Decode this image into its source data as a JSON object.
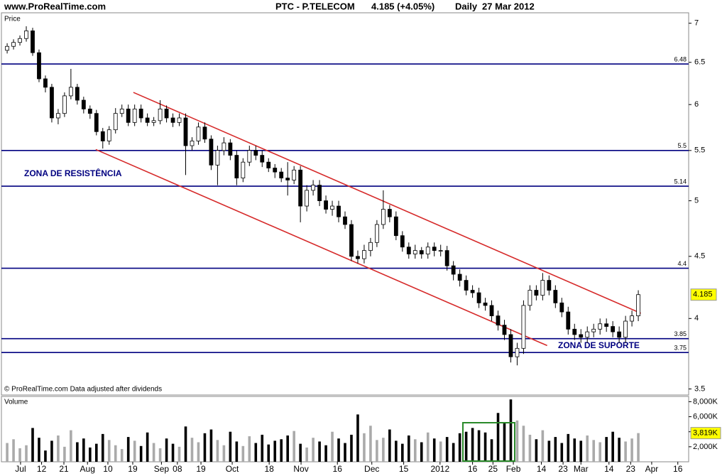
{
  "chart_data": [
    {
      "type": "candlestick",
      "site": "www.ProRealTime.com",
      "title": "PTC - P.TELECOM",
      "change_text": "4.185 (+4.05%)",
      "period": "Daily",
      "date": "27 Mar 2012",
      "ylabel": "Price",
      "footnote": "© ProRealTime.com Data adjusted after dividends",
      "log_scale": true,
      "up_color": "#ffffff",
      "down_color": "#000000",
      "level_color": "#000080",
      "trend_color": "#d62a2a",
      "last_label_color": "#ffff00",
      "ylim": [
        3.46,
        7.14
      ],
      "yticks": [
        7,
        6.5,
        6,
        5.5,
        5,
        4.5,
        4,
        3.5
      ],
      "xlim": [
        -0.9,
        106.9
      ],
      "xticks": [
        {
          "value": 2.1,
          "label": "Jul"
        },
        {
          "value": 5.4,
          "label": "12"
        },
        {
          "value": 8.9,
          "label": "21"
        },
        {
          "value": 12.6,
          "label": "Aug"
        },
        {
          "value": 15.8,
          "label": "10"
        },
        {
          "value": 19.7,
          "label": "19"
        },
        {
          "value": 24.2,
          "label": "Sep"
        },
        {
          "value": 26.7,
          "label": "08"
        },
        {
          "value": 30.4,
          "label": "19"
        },
        {
          "value": 35.3,
          "label": "Oct"
        },
        {
          "value": 41.1,
          "label": "18"
        },
        {
          "value": 46.1,
          "label": "Nov"
        },
        {
          "value": 51.8,
          "label": "16"
        },
        {
          "value": 57.2,
          "label": "Dec"
        },
        {
          "value": 62.2,
          "label": "15"
        },
        {
          "value": 67.9,
          "label": "2012"
        },
        {
          "value": 73,
          "label": "16"
        },
        {
          "value": 76.2,
          "label": "25"
        },
        {
          "value": 79.4,
          "label": "Feb"
        },
        {
          "value": 83.8,
          "label": "14"
        },
        {
          "value": 87.2,
          "label": "23"
        },
        {
          "value": 90,
          "label": "Mar"
        },
        {
          "value": 94.4,
          "label": "14"
        },
        {
          "value": 97.8,
          "label": "23"
        },
        {
          "value": 101.1,
          "label": "Apr"
        },
        {
          "value": 105.2,
          "label": "16"
        }
      ],
      "levels": [
        6.48,
        5.5,
        5.14,
        4.4,
        3.85,
        3.75
      ],
      "trendlines": [
        {
          "x": [
            19.8,
            99.4
          ],
          "y": [
            6.14,
            4.04
          ]
        },
        {
          "x": [
            13.9,
            84.7
          ],
          "y": [
            5.51,
            3.8
          ]
        }
      ],
      "annotations": [
        "ZONA DE RESISTÊNCIA",
        "ZONA DE SUPORTE"
      ],
      "open": [
        6.65,
        6.7,
        6.75,
        6.8,
        6.9,
        6.62,
        6.3,
        6.2,
        5.85,
        5.9,
        6.1,
        6.2,
        6.05,
        5.95,
        5.9,
        5.7,
        5.6,
        5.72,
        5.9,
        5.95,
        5.8,
        5.95,
        5.85,
        5.8,
        5.82,
        5.95,
        5.85,
        5.8,
        5.85,
        5.55,
        5.6,
        5.75,
        5.62,
        5.35,
        5.5,
        5.58,
        5.45,
        5.22,
        5.38,
        5.5,
        5.45,
        5.38,
        5.32,
        5.28,
        5.22,
        5.2,
        5.3,
        4.95,
        5.1,
        5.15,
        5.0,
        4.92,
        4.95,
        4.85,
        4.78,
        4.5,
        4.48,
        4.55,
        4.62,
        4.78,
        4.92,
        4.85,
        4.68,
        4.58,
        4.52,
        4.55,
        4.52,
        4.58,
        4.55,
        4.55,
        4.42,
        4.35,
        4.3,
        4.22,
        4.2,
        4.12,
        4.1,
        4.02,
        3.95,
        3.88,
        3.72,
        3.78,
        4.1,
        4.22,
        4.18,
        4.3,
        4.22,
        4.12,
        4.05,
        3.92,
        3.88,
        3.86,
        3.9,
        3.92,
        3.96,
        3.94,
        3.9,
        3.86,
        3.98,
        4.02
      ],
      "high": [
        6.74,
        6.79,
        6.84,
        6.96,
        6.94,
        6.66,
        6.34,
        6.24,
        5.95,
        6.14,
        6.42,
        6.24,
        6.09,
        5.99,
        5.94,
        5.74,
        5.76,
        5.96,
        6.0,
        6.0,
        6.0,
        6.0,
        5.9,
        5.86,
        6.05,
        5.99,
        5.9,
        5.9,
        5.9,
        5.64,
        5.8,
        5.8,
        5.66,
        5.55,
        5.64,
        5.62,
        5.5,
        5.42,
        5.55,
        5.55,
        5.5,
        5.42,
        5.36,
        5.32,
        5.38,
        5.34,
        5.34,
        5.15,
        5.2,
        5.2,
        5.05,
        5.0,
        5.0,
        4.9,
        4.82,
        4.55,
        4.6,
        4.66,
        4.82,
        5.1,
        4.96,
        4.9,
        4.72,
        4.62,
        4.6,
        4.58,
        4.62,
        4.62,
        4.6,
        4.59,
        4.46,
        4.39,
        4.34,
        4.26,
        4.24,
        4.16,
        4.14,
        4.06,
        3.99,
        3.92,
        3.82,
        4.14,
        4.26,
        4.26,
        4.36,
        4.34,
        4.26,
        4.16,
        4.09,
        3.96,
        3.92,
        3.94,
        3.96,
        4.0,
        4.0,
        3.98,
        3.94,
        4.02,
        4.06,
        4.22
      ],
      "low": [
        6.61,
        6.66,
        6.71,
        6.76,
        6.58,
        6.26,
        6.14,
        5.8,
        5.78,
        5.86,
        6.06,
        6.0,
        5.9,
        5.84,
        5.66,
        5.52,
        5.56,
        5.68,
        5.86,
        5.76,
        5.76,
        5.8,
        5.76,
        5.76,
        5.78,
        5.8,
        5.75,
        5.76,
        5.25,
        5.5,
        5.56,
        5.58,
        5.3,
        5.15,
        5.45,
        5.4,
        5.15,
        5.18,
        5.34,
        5.4,
        5.33,
        5.28,
        5.22,
        5.18,
        5.05,
        5.16,
        4.8,
        4.9,
        5.05,
        4.95,
        4.88,
        4.86,
        4.8,
        4.74,
        4.46,
        4.44,
        4.44,
        4.5,
        4.58,
        4.74,
        4.8,
        4.64,
        4.54,
        4.48,
        4.48,
        4.48,
        4.48,
        4.5,
        4.5,
        4.38,
        4.3,
        4.25,
        4.18,
        4.16,
        4.08,
        4.06,
        3.98,
        3.91,
        3.84,
        3.68,
        3.66,
        3.74,
        4.06,
        4.14,
        4.14,
        4.18,
        4.08,
        4.01,
        3.88,
        3.84,
        3.82,
        3.82,
        3.86,
        3.88,
        3.9,
        3.86,
        3.82,
        3.82,
        3.94,
        3.98
      ],
      "close": [
        6.7,
        6.75,
        6.8,
        6.9,
        6.62,
        6.3,
        6.2,
        5.85,
        5.9,
        6.1,
        6.2,
        6.05,
        5.95,
        5.9,
        5.7,
        5.6,
        5.72,
        5.9,
        5.95,
        5.8,
        5.95,
        5.85,
        5.8,
        5.82,
        5.95,
        5.85,
        5.8,
        5.85,
        5.55,
        5.6,
        5.75,
        5.62,
        5.35,
        5.5,
        5.58,
        5.45,
        5.22,
        5.38,
        5.5,
        5.45,
        5.38,
        5.32,
        5.28,
        5.22,
        5.2,
        5.3,
        4.95,
        5.1,
        5.15,
        5.0,
        4.92,
        4.95,
        4.85,
        4.78,
        4.5,
        4.48,
        4.55,
        4.62,
        4.78,
        4.92,
        4.85,
        4.68,
        4.58,
        4.52,
        4.55,
        4.52,
        4.58,
        4.55,
        4.55,
        4.42,
        4.35,
        4.3,
        4.22,
        4.2,
        4.12,
        4.1,
        4.02,
        3.95,
        3.88,
        3.72,
        3.78,
        4.1,
        4.22,
        4.18,
        4.3,
        4.22,
        4.12,
        4.05,
        3.92,
        3.88,
        3.86,
        3.9,
        3.92,
        3.96,
        3.94,
        3.9,
        3.86,
        3.98,
        4.02,
        4.185
      ]
    },
    {
      "type": "bar",
      "ylabel": "Volume",
      "up_color": "#aaaaaa",
      "down_color": "#000000",
      "box_color": "#2a8a2a",
      "ylim": [
        0,
        8700
      ],
      "yticks": [
        {
          "value": 2000,
          "label": "2,000K"
        },
        {
          "value": 4000,
          "label": "4,000K"
        },
        {
          "value": 6000,
          "label": "6,000K"
        },
        {
          "value": 8000,
          "label": "8,000K"
        }
      ],
      "values": [
        2500,
        3000,
        1800,
        2200,
        4500,
        3200,
        1500,
        2800,
        3500,
        2000,
        4200,
        2600,
        3100,
        1900,
        2400,
        3700,
        2900,
        2200,
        1700,
        3300,
        2800,
        2100,
        3900,
        2500,
        1800,
        3100,
        2400,
        2000,
        4700,
        3200,
        2600,
        3800,
        4300,
        2900,
        2200,
        4000,
        2700,
        2100,
        3400,
        2500,
        3600,
        2300,
        2800,
        3000,
        3500,
        4100,
        2400,
        1900,
        3200,
        2700,
        2200,
        4000,
        3100,
        2500,
        3600,
        6300,
        3800,
        4800,
        2900,
        3200,
        4300,
        2800,
        2400,
        3500,
        3000,
        2600,
        3900,
        3100,
        2700,
        3300,
        2500,
        3800,
        4000,
        4500,
        4200,
        3900,
        3000,
        6500,
        5200,
        8300,
        5500,
        4800,
        3600,
        3000,
        4200,
        2800,
        3300,
        2500,
        3700,
        3100,
        2800,
        3500,
        2900,
        2600,
        3300,
        4000,
        3200,
        2700,
        3100,
        3819
      ],
      "last_value_label": "3,819K"
    }
  ]
}
